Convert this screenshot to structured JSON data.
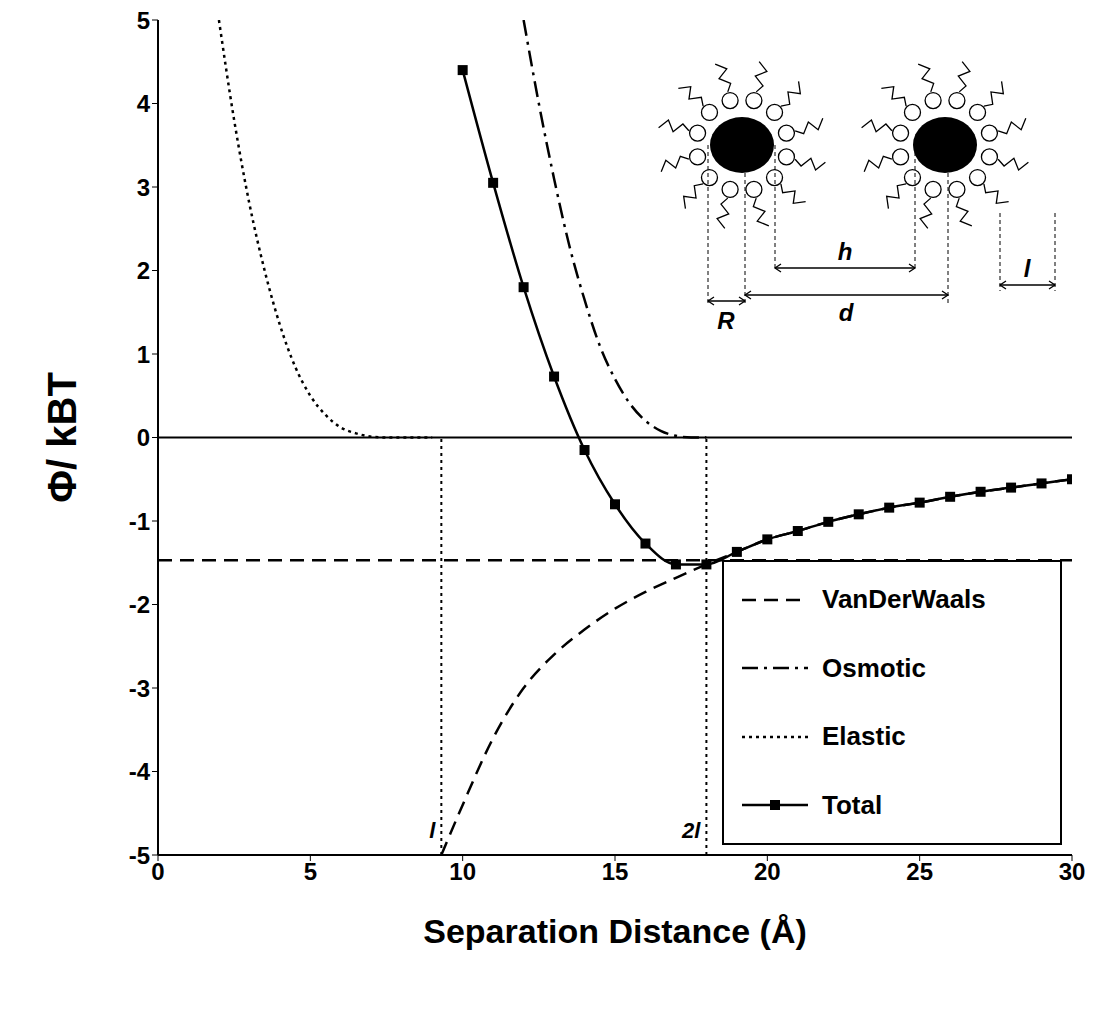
{
  "chart_data": {
    "type": "line",
    "x_label": "Separation Distance (Å)",
    "y_label": "Φ/ kBT",
    "xlim": [
      0,
      30
    ],
    "xticks": [
      0,
      5,
      10,
      15,
      20,
      25,
      30
    ],
    "ylim": [
      -5,
      5
    ],
    "yticks": [
      -5,
      -4,
      -3,
      -2,
      -1,
      0,
      1,
      2,
      3,
      4,
      5
    ],
    "grid": false,
    "legend": "lower right",
    "series": [
      {
        "name": "VanDerWaals",
        "color": "#000000",
        "line_style": "dashed",
        "marker": "none",
        "x": [
          9.3,
          10,
          11,
          12,
          13,
          14,
          15,
          16,
          17,
          18,
          19,
          20,
          21,
          22,
          23,
          24,
          25,
          26,
          27,
          28,
          29,
          30
        ],
        "values": [
          -5,
          -4.4,
          -3.6,
          -3.0,
          -2.6,
          -2.3,
          -2.05,
          -1.85,
          -1.68,
          -1.52,
          -1.37,
          -1.22,
          -1.12,
          -1.01,
          -0.92,
          -0.84,
          -0.78,
          -0.71,
          -0.65,
          -0.6,
          -0.55,
          -0.5
        ]
      },
      {
        "name": "Osmotic",
        "color": "#000000",
        "line_style": "dashdot",
        "marker": "none",
        "x": [
          12,
          12.5,
          13,
          13.5,
          14,
          14.5,
          15,
          15.5,
          16,
          16.5,
          17,
          17.5,
          18
        ],
        "values": [
          5.0,
          4.0,
          3.1,
          2.3,
          1.65,
          1.1,
          0.7,
          0.4,
          0.2,
          0.08,
          0.02,
          0,
          0
        ]
      },
      {
        "name": "Elastic",
        "color": "#000000",
        "line_style": "dotted",
        "marker": "none",
        "x": [
          2,
          2.5,
          3,
          3.5,
          4,
          4.5,
          5,
          5.5,
          6,
          6.5,
          7,
          7.5,
          8,
          9
        ],
        "values": [
          5.0,
          3.8,
          2.8,
          2.0,
          1.35,
          0.85,
          0.5,
          0.27,
          0.12,
          0.05,
          0.01,
          0,
          0,
          0
        ]
      },
      {
        "name": "Total",
        "color": "#000000",
        "line_style": "solid",
        "marker": "square",
        "x": [
          10,
          11,
          12,
          13,
          14,
          15,
          16,
          17,
          18,
          19,
          20,
          21,
          22,
          23,
          24,
          25,
          26,
          27,
          28,
          29,
          30
        ],
        "values": [
          4.4,
          3.05,
          1.8,
          0.73,
          -0.15,
          -0.8,
          -1.27,
          -1.52,
          -1.52,
          -1.37,
          -1.22,
          -1.12,
          -1.01,
          -0.92,
          -0.84,
          -0.78,
          -0.71,
          -0.65,
          -0.6,
          -0.55,
          -0.5
        ]
      }
    ],
    "reference_lines": [
      {
        "axis": "y",
        "value": 0,
        "line_style": "solid"
      },
      {
        "axis": "y",
        "value": -1.47,
        "line_style": "dashed"
      },
      {
        "axis": "x",
        "value": 9.3,
        "to": 0,
        "label": "l",
        "line_style": "dotted"
      },
      {
        "axis": "x",
        "value": 18,
        "to": 0,
        "label": "2l",
        "line_style": "dotted"
      }
    ],
    "inset_labels": [
      "R",
      "d",
      "h",
      "l"
    ]
  }
}
